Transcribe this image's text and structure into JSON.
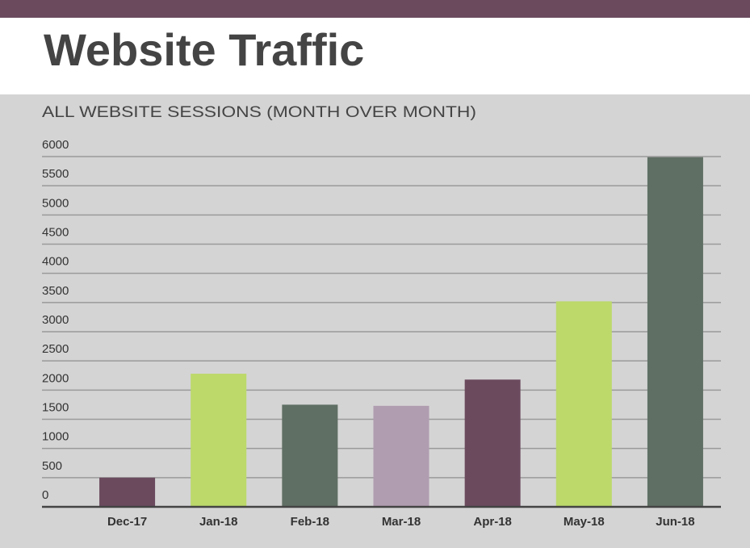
{
  "chart_data": {
    "type": "bar",
    "title": "Website Traffic",
    "subtitle": "ALL WEBSITE SESSIONS (MONTH OVER MONTH)",
    "categories": [
      "Dec-17",
      "Jan-18",
      "Feb-18",
      "Mar-18",
      "Apr-18",
      "May-18",
      "Jun-18"
    ],
    "values": [
      500,
      2280,
      1750,
      1730,
      2180,
      3520,
      5990
    ],
    "colors": [
      "#6b4a5e",
      "#bcd96a",
      "#5f6f64",
      "#b09db0",
      "#6b4a5e",
      "#bcd96a",
      "#5f6f64"
    ],
    "ylim": [
      0,
      6000
    ],
    "yticks": [
      0,
      500,
      1000,
      1500,
      2000,
      2500,
      3000,
      3500,
      4000,
      4500,
      5000,
      5500,
      6000
    ],
    "grid": true
  }
}
